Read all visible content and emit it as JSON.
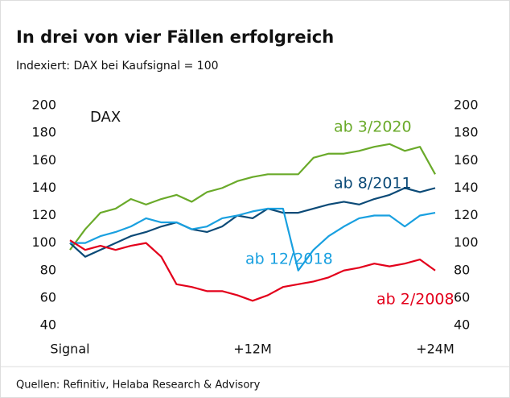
{
  "chart_data": {
    "type": "line",
    "title": "In drei von vier Fällen erfolgreich",
    "subtitle": "Indexiert: DAX bei Kaufsignal = 100",
    "annotation": "DAX",
    "source": "Quellen: Refinitiv, Helaba Research & Advisory",
    "x": [
      0,
      1,
      2,
      3,
      4,
      5,
      6,
      7,
      8,
      9,
      10,
      11,
      12,
      13,
      14,
      15,
      16,
      17,
      18,
      19,
      20,
      21,
      22,
      23,
      24
    ],
    "xlim": [
      0,
      24
    ],
    "xticks": [
      {
        "value": 0,
        "label": "Signal"
      },
      {
        "value": 12,
        "label": "+12M"
      },
      {
        "value": 24,
        "label": "+24M"
      }
    ],
    "ylim": [
      40,
      200
    ],
    "yticks": [
      40,
      60,
      80,
      100,
      120,
      140,
      160,
      180,
      200
    ],
    "y2lim": [
      40,
      200
    ],
    "y2ticks": [
      40,
      60,
      80,
      100,
      120,
      140,
      160,
      180,
      200
    ],
    "series": [
      {
        "name": "ab 3/2020",
        "color": "#6aaa2a",
        "values": [
          95,
          110,
          122,
          125,
          132,
          128,
          132,
          135,
          130,
          137,
          140,
          145,
          148,
          150,
          150,
          150,
          162,
          165,
          165,
          167,
          170,
          172,
          167,
          170,
          150
        ]
      },
      {
        "name": "ab 8/2011",
        "color": "#0b4a77",
        "values": [
          100,
          90,
          95,
          100,
          105,
          108,
          112,
          115,
          110,
          108,
          112,
          120,
          118,
          125,
          122,
          122,
          125,
          128,
          130,
          128,
          132,
          135,
          140,
          137,
          140
        ]
      },
      {
        "name": "ab 12/2018",
        "color": "#19a0e0",
        "values": [
          100,
          100,
          105,
          108,
          112,
          118,
          115,
          115,
          110,
          112,
          118,
          120,
          123,
          125,
          125,
          80,
          95,
          105,
          112,
          118,
          120,
          120,
          112,
          120,
          122
        ]
      },
      {
        "name": "ab 2/2008",
        "color": "#e3001b",
        "values": [
          102,
          95,
          98,
          95,
          98,
          100,
          90,
          70,
          68,
          65,
          65,
          62,
          58,
          62,
          68,
          70,
          72,
          75,
          80,
          82,
          85,
          83,
          85,
          88,
          80
        ]
      }
    ]
  }
}
